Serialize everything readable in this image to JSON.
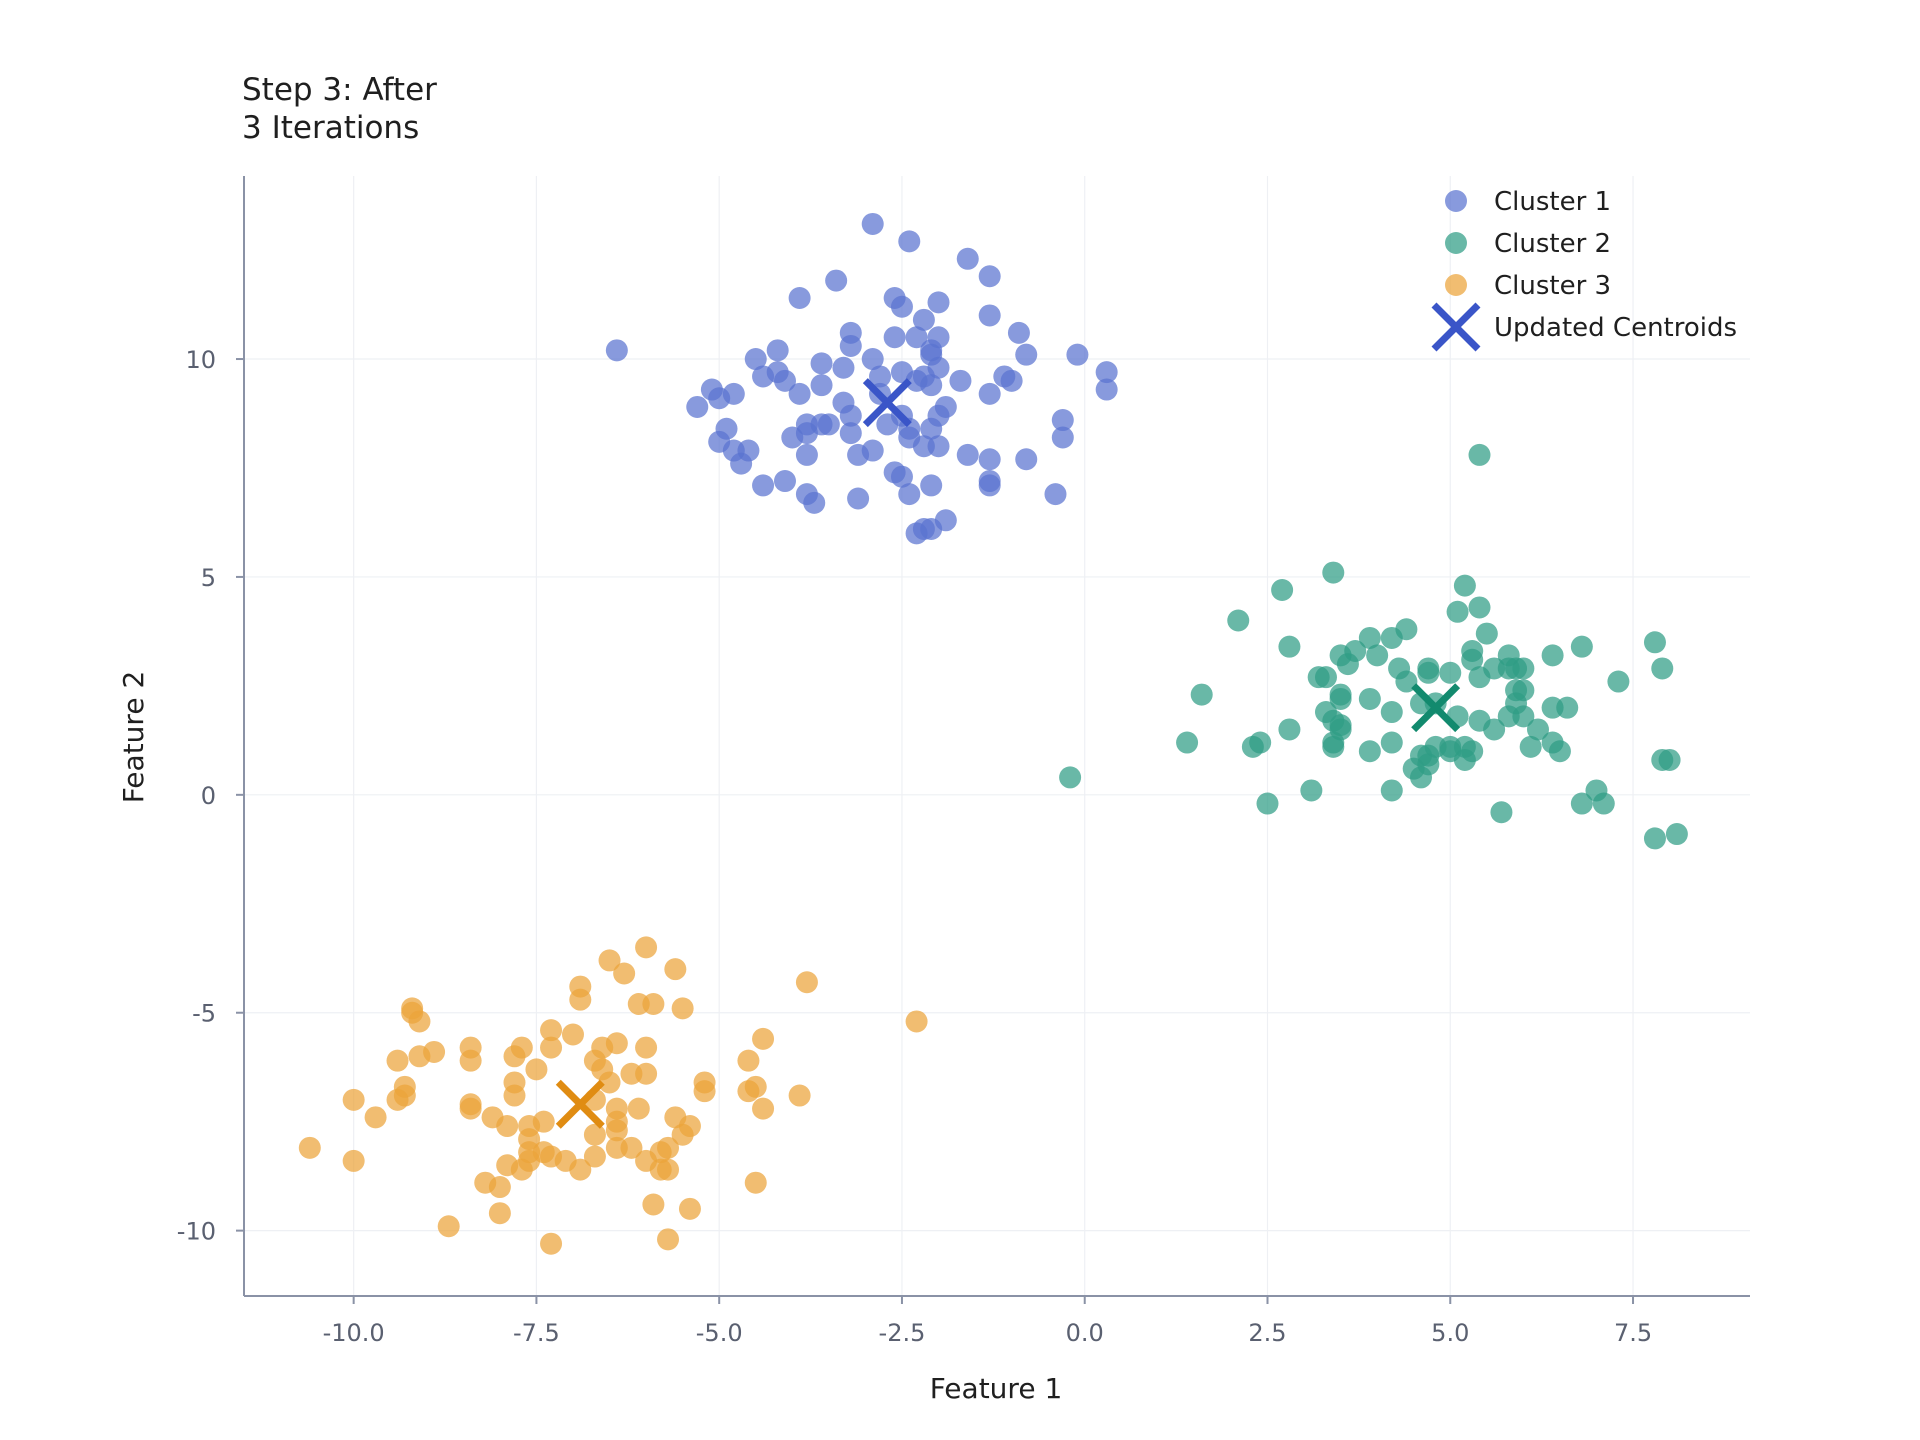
{
  "chart_data": {
    "type": "scatter",
    "title_lines": [
      "Step 3: After",
      "3 Iterations"
    ],
    "xlabel": "Feature 1",
    "ylabel": "Feature 2",
    "xlim": [
      -11.5,
      9.1
    ],
    "ylim": [
      -11.5,
      14.2
    ],
    "xticks": [
      -10,
      -7.5,
      -5,
      -2.5,
      0,
      2.5,
      5,
      7.5
    ],
    "xtick_labels": [
      "-10.0",
      "-7.5",
      "-5.0",
      "-2.5",
      "0.0",
      "2.5",
      "5.0",
      "7.5"
    ],
    "yticks": [
      -10,
      -5,
      0,
      5,
      10
    ],
    "ytick_labels": [
      "-10",
      "-5",
      "0",
      "5",
      "10"
    ],
    "grid": true,
    "legend_position": "top-right",
    "series": [
      {
        "name": "Cluster 1",
        "color": "#5a73d0",
        "points": [
          [
            -2.9,
            13.1
          ],
          [
            -2.4,
            12.7
          ],
          [
            -1.6,
            12.3
          ],
          [
            -1.3,
            11.9
          ],
          [
            -3.4,
            11.8
          ],
          [
            -2.6,
            11.4
          ],
          [
            -3.9,
            11.4
          ],
          [
            -2.0,
            11.3
          ],
          [
            -2.5,
            11.2
          ],
          [
            -2.2,
            10.9
          ],
          [
            -1.3,
            11.0
          ],
          [
            -3.2,
            10.6
          ],
          [
            -2.6,
            10.5
          ],
          [
            -2.3,
            10.5
          ],
          [
            -2.0,
            10.5
          ],
          [
            -0.9,
            10.6
          ],
          [
            -6.4,
            10.2
          ],
          [
            -3.2,
            10.3
          ],
          [
            -2.1,
            10.2
          ],
          [
            -2.1,
            10.1
          ],
          [
            -0.8,
            10.1
          ],
          [
            -0.1,
            10.1
          ],
          [
            -4.2,
            10.2
          ],
          [
            -3.6,
            9.9
          ],
          [
            -3.3,
            9.8
          ],
          [
            -2.9,
            10.0
          ],
          [
            -4.5,
            10.0
          ],
          [
            -4.2,
            9.7
          ],
          [
            -4.4,
            9.6
          ],
          [
            -2.8,
            9.6
          ],
          [
            -2.5,
            9.7
          ],
          [
            -2.2,
            9.6
          ],
          [
            -2.0,
            9.8
          ],
          [
            -1.7,
            9.5
          ],
          [
            -1.1,
            9.6
          ],
          [
            -1.0,
            9.5
          ],
          [
            0.3,
            9.7
          ],
          [
            -4.1,
            9.5
          ],
          [
            -3.9,
            9.2
          ],
          [
            -4.8,
            9.2
          ],
          [
            -5.0,
            9.1
          ],
          [
            -5.1,
            9.3
          ],
          [
            -3.6,
            9.4
          ],
          [
            -2.3,
            9.5
          ],
          [
            -2.1,
            9.4
          ],
          [
            -1.3,
            9.2
          ],
          [
            -5.3,
            8.9
          ],
          [
            -3.3,
            9.0
          ],
          [
            -2.8,
            9.2
          ],
          [
            -1.9,
            8.9
          ],
          [
            -2.0,
            8.7
          ],
          [
            -2.5,
            8.7
          ],
          [
            -3.2,
            8.7
          ],
          [
            -3.8,
            8.5
          ],
          [
            -3.6,
            8.5
          ],
          [
            -3.5,
            8.5
          ],
          [
            0.3,
            9.3
          ],
          [
            -0.3,
            8.6
          ],
          [
            -2.7,
            8.5
          ],
          [
            -2.4,
            8.4
          ],
          [
            -2.1,
            8.4
          ],
          [
            -3.2,
            8.3
          ],
          [
            -4.9,
            8.4
          ],
          [
            -5.0,
            8.1
          ],
          [
            -4.0,
            8.2
          ],
          [
            -3.8,
            8.3
          ],
          [
            -2.4,
            8.2
          ],
          [
            -2.0,
            8.0
          ],
          [
            -2.2,
            8.0
          ],
          [
            -0.3,
            8.2
          ],
          [
            -4.6,
            7.9
          ],
          [
            -4.8,
            7.9
          ],
          [
            -3.8,
            7.8
          ],
          [
            -3.1,
            7.8
          ],
          [
            -2.9,
            7.9
          ],
          [
            -1.6,
            7.8
          ],
          [
            -1.3,
            7.7
          ],
          [
            -0.8,
            7.7
          ],
          [
            -4.7,
            7.6
          ],
          [
            -2.6,
            7.4
          ],
          [
            -2.5,
            7.3
          ],
          [
            -2.1,
            7.1
          ],
          [
            -1.3,
            7.2
          ],
          [
            -1.3,
            7.1
          ],
          [
            -4.4,
            7.1
          ],
          [
            -4.1,
            7.2
          ],
          [
            -3.8,
            6.9
          ],
          [
            -3.7,
            6.7
          ],
          [
            -3.1,
            6.8
          ],
          [
            -2.4,
            6.9
          ],
          [
            -0.4,
            6.9
          ],
          [
            -2.2,
            6.1
          ],
          [
            -2.3,
            6.0
          ],
          [
            -2.1,
            6.1
          ],
          [
            -1.9,
            6.3
          ]
        ]
      },
      {
        "name": "Cluster 2",
        "color": "#2f9d85",
        "points": [
          [
            5.4,
            7.8
          ],
          [
            3.4,
            5.1
          ],
          [
            2.7,
            4.7
          ],
          [
            5.2,
            4.8
          ],
          [
            2.1,
            4.0
          ],
          [
            5.1,
            4.2
          ],
          [
            5.4,
            4.3
          ],
          [
            4.4,
            3.8
          ],
          [
            3.9,
            3.6
          ],
          [
            4.2,
            3.6
          ],
          [
            5.5,
            3.7
          ],
          [
            2.8,
            3.4
          ],
          [
            3.7,
            3.3
          ],
          [
            3.5,
            3.2
          ],
          [
            4.0,
            3.2
          ],
          [
            5.3,
            3.3
          ],
          [
            5.3,
            3.1
          ],
          [
            5.8,
            3.2
          ],
          [
            6.4,
            3.2
          ],
          [
            6.8,
            3.4
          ],
          [
            7.8,
            3.5
          ],
          [
            3.6,
            3.0
          ],
          [
            4.3,
            2.9
          ],
          [
            4.7,
            2.9
          ],
          [
            4.7,
            2.8
          ],
          [
            5.0,
            2.8
          ],
          [
            5.4,
            2.7
          ],
          [
            5.6,
            2.9
          ],
          [
            5.8,
            2.9
          ],
          [
            5.9,
            2.9
          ],
          [
            6.0,
            2.9
          ],
          [
            7.9,
            2.9
          ],
          [
            3.2,
            2.7
          ],
          [
            3.3,
            2.7
          ],
          [
            4.4,
            2.6
          ],
          [
            5.9,
            2.4
          ],
          [
            6.0,
            2.4
          ],
          [
            7.3,
            2.6
          ],
          [
            1.6,
            2.3
          ],
          [
            3.5,
            2.3
          ],
          [
            3.5,
            2.2
          ],
          [
            4.6,
            2.1
          ],
          [
            4.8,
            2.1
          ],
          [
            5.9,
            2.1
          ],
          [
            6.4,
            2.0
          ],
          [
            6.6,
            2.0
          ],
          [
            3.3,
            1.9
          ],
          [
            3.9,
            2.2
          ],
          [
            4.2,
            1.9
          ],
          [
            5.1,
            1.8
          ],
          [
            5.4,
            1.7
          ],
          [
            5.8,
            1.8
          ],
          [
            6.0,
            1.8
          ],
          [
            3.4,
            1.7
          ],
          [
            3.5,
            1.6
          ],
          [
            3.5,
            1.5
          ],
          [
            2.8,
            1.5
          ],
          [
            5.6,
            1.5
          ],
          [
            6.2,
            1.5
          ],
          [
            6.4,
            1.2
          ],
          [
            2.4,
            1.2
          ],
          [
            2.3,
            1.1
          ],
          [
            1.4,
            1.2
          ],
          [
            3.4,
            1.1
          ],
          [
            3.4,
            1.2
          ],
          [
            4.2,
            1.2
          ],
          [
            4.8,
            1.1
          ],
          [
            5.0,
            1.1
          ],
          [
            5.2,
            1.1
          ],
          [
            3.9,
            1.0
          ],
          [
            4.6,
            0.9
          ],
          [
            4.7,
            0.9
          ],
          [
            5.0,
            1.0
          ],
          [
            5.3,
            1.0
          ],
          [
            6.1,
            1.1
          ],
          [
            6.5,
            1.0
          ],
          [
            7.9,
            0.8
          ],
          [
            8.0,
            0.8
          ],
          [
            4.5,
            0.6
          ],
          [
            4.7,
            0.7
          ],
          [
            5.2,
            0.8
          ],
          [
            4.6,
            0.4
          ],
          [
            -0.2,
            0.4
          ],
          [
            3.1,
            0.1
          ],
          [
            4.2,
            0.1
          ],
          [
            7.0,
            0.1
          ],
          [
            2.5,
            -0.2
          ],
          [
            5.7,
            -0.4
          ],
          [
            6.8,
            -0.2
          ],
          [
            7.1,
            -0.2
          ],
          [
            7.8,
            -1.0
          ],
          [
            8.1,
            -0.9
          ]
        ]
      },
      {
        "name": "Cluster 3",
        "color": "#eba43a",
        "points": [
          [
            -6.0,
            -3.5
          ],
          [
            -6.5,
            -3.8
          ],
          [
            -5.6,
            -4.0
          ],
          [
            -6.3,
            -4.1
          ],
          [
            -3.8,
            -4.3
          ],
          [
            -6.9,
            -4.4
          ],
          [
            -6.9,
            -4.7
          ],
          [
            -6.1,
            -4.8
          ],
          [
            -5.9,
            -4.8
          ],
          [
            -5.5,
            -4.9
          ],
          [
            -9.2,
            -4.9
          ],
          [
            -9.2,
            -5.0
          ],
          [
            -9.1,
            -5.2
          ],
          [
            -2.3,
            -5.2
          ],
          [
            -7.3,
            -5.4
          ],
          [
            -7.0,
            -5.5
          ],
          [
            -4.4,
            -5.6
          ],
          [
            -7.7,
            -5.8
          ],
          [
            -7.3,
            -5.8
          ],
          [
            -6.6,
            -5.8
          ],
          [
            -6.4,
            -5.7
          ],
          [
            -6.0,
            -5.8
          ],
          [
            -8.4,
            -5.8
          ],
          [
            -8.9,
            -5.9
          ],
          [
            -9.1,
            -6.0
          ],
          [
            -9.4,
            -6.1
          ],
          [
            -8.4,
            -6.1
          ],
          [
            -7.8,
            -6.0
          ],
          [
            -6.7,
            -6.1
          ],
          [
            -4.6,
            -6.1
          ],
          [
            -7.5,
            -6.3
          ],
          [
            -6.6,
            -6.3
          ],
          [
            -6.2,
            -6.4
          ],
          [
            -6.0,
            -6.4
          ],
          [
            -5.2,
            -6.6
          ],
          [
            -9.3,
            -6.7
          ],
          [
            -7.8,
            -6.6
          ],
          [
            -6.5,
            -6.6
          ],
          [
            -4.6,
            -6.8
          ],
          [
            -4.5,
            -6.7
          ],
          [
            -5.2,
            -6.8
          ],
          [
            -9.3,
            -6.9
          ],
          [
            -9.4,
            -7.0
          ],
          [
            -7.8,
            -6.9
          ],
          [
            -3.9,
            -6.9
          ],
          [
            -10.0,
            -7.0
          ],
          [
            -8.4,
            -7.1
          ],
          [
            -8.4,
            -7.2
          ],
          [
            -6.7,
            -7.0
          ],
          [
            -6.4,
            -7.2
          ],
          [
            -6.1,
            -7.2
          ],
          [
            -4.4,
            -7.2
          ],
          [
            -9.7,
            -7.4
          ],
          [
            -8.1,
            -7.4
          ],
          [
            -7.4,
            -7.5
          ],
          [
            -7.6,
            -7.6
          ],
          [
            -7.9,
            -7.6
          ],
          [
            -6.4,
            -7.5
          ],
          [
            -5.6,
            -7.4
          ],
          [
            -5.4,
            -7.6
          ],
          [
            -5.5,
            -7.8
          ],
          [
            -7.6,
            -7.9
          ],
          [
            -6.7,
            -7.8
          ],
          [
            -6.4,
            -7.7
          ],
          [
            -7.4,
            -8.2
          ],
          [
            -7.6,
            -8.2
          ],
          [
            -6.4,
            -8.1
          ],
          [
            -6.2,
            -8.1
          ],
          [
            -5.8,
            -8.2
          ],
          [
            -5.7,
            -8.1
          ],
          [
            -10.6,
            -8.1
          ],
          [
            -7.6,
            -8.4
          ],
          [
            -7.3,
            -8.3
          ],
          [
            -7.1,
            -8.4
          ],
          [
            -6.7,
            -8.3
          ],
          [
            -6.0,
            -8.4
          ],
          [
            -10.0,
            -8.4
          ],
          [
            -7.7,
            -8.6
          ],
          [
            -7.9,
            -8.5
          ],
          [
            -6.9,
            -8.6
          ],
          [
            -5.8,
            -8.6
          ],
          [
            -5.7,
            -8.6
          ],
          [
            -8.2,
            -8.9
          ],
          [
            -8.0,
            -9.0
          ],
          [
            -4.5,
            -8.9
          ],
          [
            -5.9,
            -9.4
          ],
          [
            -5.4,
            -9.5
          ],
          [
            -8.0,
            -9.6
          ],
          [
            -8.7,
            -9.9
          ],
          [
            -5.7,
            -10.2
          ],
          [
            -7.3,
            -10.3
          ]
        ]
      }
    ],
    "centroids": {
      "name": "Updated Centroids",
      "points": [
        [
          -2.7,
          9.0
        ],
        [
          4.8,
          2.0
        ],
        [
          -6.9,
          -7.1
        ]
      ],
      "colors": [
        "#3a55c8",
        "#128a6e",
        "#e08c12"
      ]
    }
  }
}
